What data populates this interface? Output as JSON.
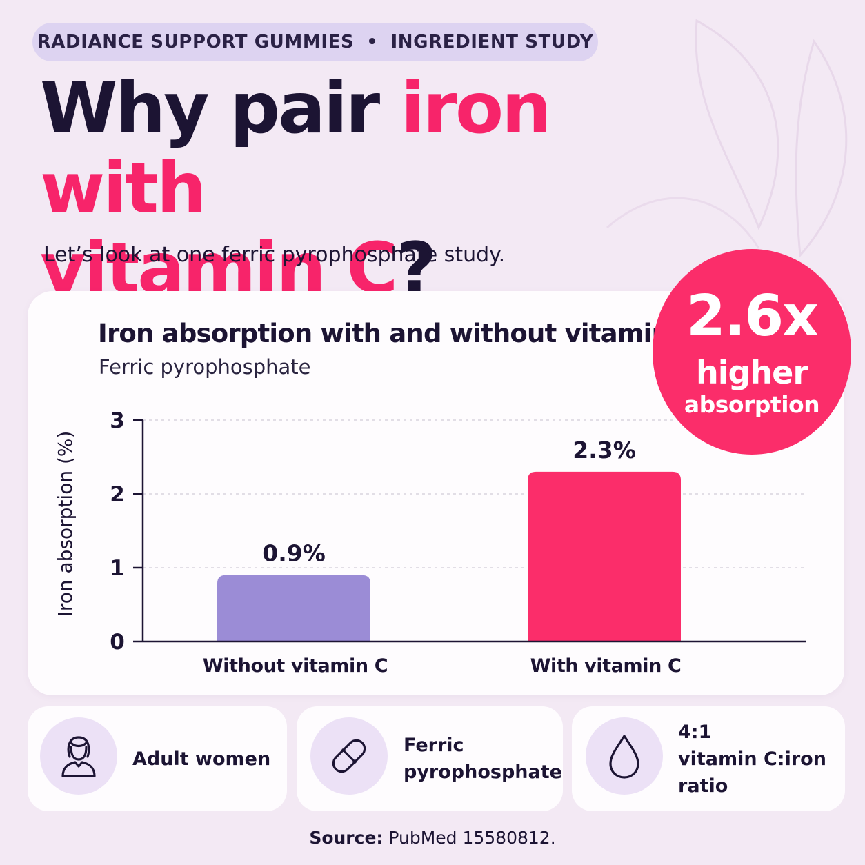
{
  "header": {
    "tag_left": "RADIANCE SUPPORT GUMMIES",
    "tag_sep": "•",
    "tag_right": "INGREDIENT STUDY",
    "headline_part1": "Why pair ",
    "headline_part2": "iron with",
    "headline_part3": "vitamin C",
    "headline_part4": "?",
    "lede": "Let’s look at one ferric pyrophosphate study."
  },
  "badge": {
    "value": "2.6x",
    "line1": "higher",
    "line2": "absorption"
  },
  "chart_data": {
    "type": "bar",
    "title": "Iron absorption with and without vitamin C",
    "subtitle": "Ferric pyrophosphate",
    "categories": [
      "Without vitamin C",
      "With vitamin C"
    ],
    "values": [
      0.9,
      2.3
    ],
    "value_labels": [
      "0.9%",
      "2.3%"
    ],
    "colors": [
      "#9b8cd6",
      "#fb2d6a"
    ],
    "xlabel": "",
    "ylabel": "Iron absorption (%)",
    "ylim": [
      0,
      3
    ],
    "yticks": [
      0,
      1,
      2,
      3
    ],
    "grid": true,
    "legend": "none"
  },
  "facts": [
    {
      "icon": "woman-icon",
      "line1": "Adult women",
      "line2": ""
    },
    {
      "icon": "capsule-icon",
      "line1": "Ferric",
      "line2": "pyrophosphate"
    },
    {
      "icon": "droplet-icon",
      "line1": "4:1",
      "line2": "vitamin C:iron ratio"
    }
  ],
  "footer": {
    "source_label": "Source:",
    "source_text": " PubMed 15580812."
  },
  "colors": {
    "background": "#f3e9f4",
    "accent": "#fb2d6a",
    "ink": "#1c1433",
    "lavender": "#9b8cd6",
    "pill": "#ddd3f1"
  }
}
